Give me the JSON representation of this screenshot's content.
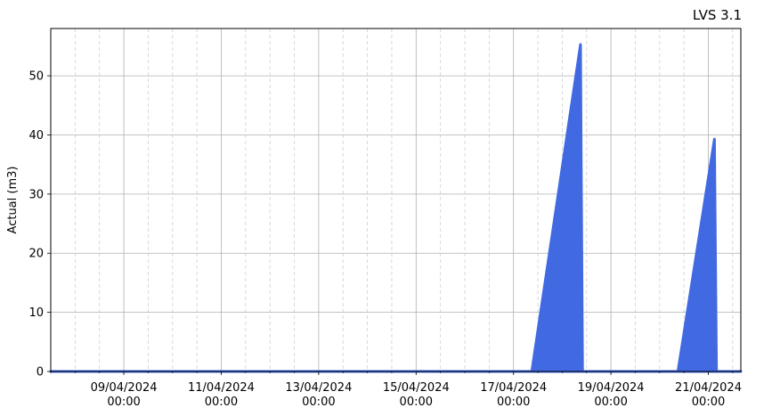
{
  "chart_data": {
    "type": "area",
    "title": "LVS 3.1",
    "xlabel": "",
    "ylabel": "Actual (m3)",
    "x_axis": {
      "type": "date",
      "range": [
        "2024-04-07T12:00",
        "2024-04-21T16:00"
      ],
      "major_ticks": [
        {
          "x": "2024-04-09T00:00",
          "label_date": "09/04/2024",
          "label_time": "00:00"
        },
        {
          "x": "2024-04-11T00:00",
          "label_date": "11/04/2024",
          "label_time": "00:00"
        },
        {
          "x": "2024-04-13T00:00",
          "label_date": "13/04/2024",
          "label_time": "00:00"
        },
        {
          "x": "2024-04-15T00:00",
          "label_date": "15/04/2024",
          "label_time": "00:00"
        },
        {
          "x": "2024-04-17T00:00",
          "label_date": "17/04/2024",
          "label_time": "00:00"
        },
        {
          "x": "2024-04-19T00:00",
          "label_date": "19/04/2024",
          "label_time": "00:00"
        },
        {
          "x": "2024-04-21T00:00",
          "label_date": "21/04/2024",
          "label_time": "00:00"
        }
      ],
      "minor_interval_hours": 12
    },
    "y_axis": {
      "ylim": [
        0,
        58
      ],
      "ticks": [
        0,
        10,
        20,
        30,
        40,
        50
      ]
    },
    "grid": true,
    "color": "#4169E1",
    "series": [
      {
        "points": [
          {
            "x": "2024-04-07T12:00",
            "y": 0
          },
          {
            "x": "2024-04-17T09:00",
            "y": 0
          },
          {
            "x": "2024-04-18T09:00",
            "y": 55.3
          },
          {
            "x": "2024-04-18T10:00",
            "y": 0
          },
          {
            "x": "2024-04-20T09:00",
            "y": 0
          },
          {
            "x": "2024-04-21T03:00",
            "y": 39.3
          },
          {
            "x": "2024-04-21T04:00",
            "y": 0
          },
          {
            "x": "2024-04-21T16:00",
            "y": 0
          }
        ]
      }
    ]
  }
}
